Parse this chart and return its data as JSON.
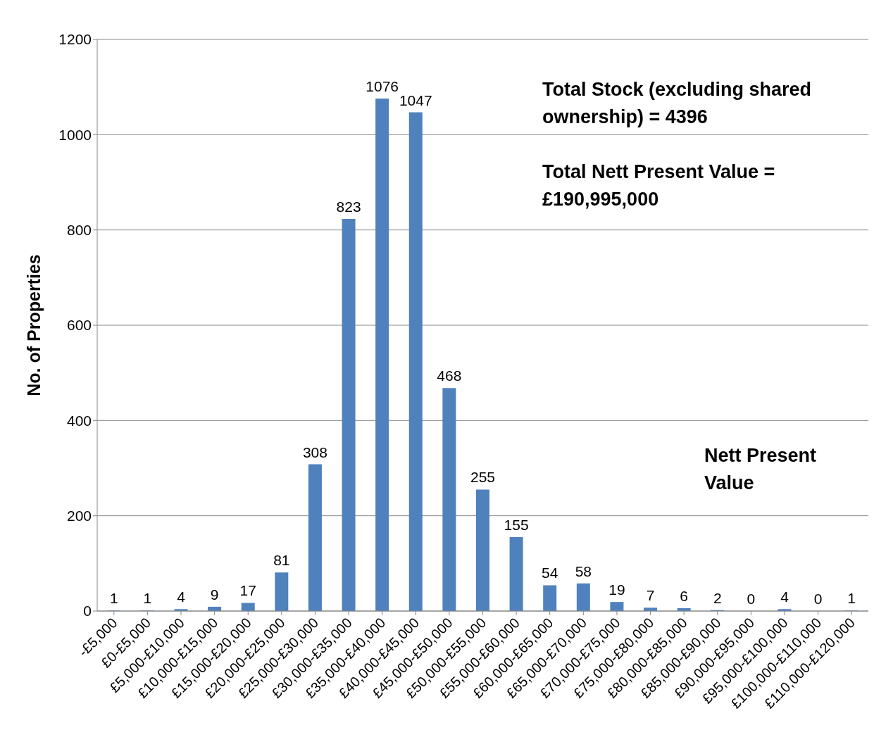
{
  "chart_data": {
    "type": "bar",
    "ylabel": "No. of Properties",
    "categories": [
      "-£5,000",
      "£0-£5,000",
      "£5,000-£10,000",
      "£10,000-£15,000",
      "£15,000-£20,000",
      "£20,000-£25,000",
      "£25,000-£30,000",
      "£30,000-£35,000",
      "£35,000-£40,000",
      "£40,000-£45,000",
      "£45,000-£50,000",
      "£50,000-£55,000",
      "£55,000-£60,000",
      "£60,000-£65,000",
      "£65,000-£70,000",
      "£70,000-£75,000",
      "£75,000-£80,000",
      "£80,000-£85,000",
      "£85,000-£90,000",
      "£90,000-£95,000",
      "£95,000-£100,000",
      "£100,000-£110,000",
      "£110,000-£120,000"
    ],
    "values": [
      1,
      1,
      4,
      9,
      17,
      81,
      308,
      823,
      1076,
      1047,
      468,
      255,
      155,
      54,
      58,
      19,
      7,
      6,
      2,
      0,
      4,
      0,
      1
    ],
    "color": "#4f81bd",
    "ylim": [
      0,
      1200
    ],
    "yticks": [
      0,
      200,
      400,
      600,
      800,
      1000,
      1200
    ],
    "grid": "y",
    "data_labels": true,
    "legend": false,
    "annotations": [
      "Total Stock (excluding shared ownership) = 4396",
      "Total Nett Present Value = £190,995,000",
      "Nett Present Value"
    ]
  }
}
